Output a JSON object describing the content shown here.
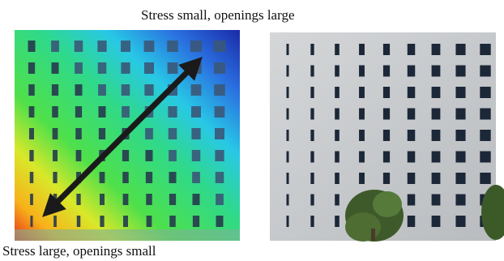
{
  "captions": {
    "top": "Stress small, openings large",
    "bottom": "Stress large, openings small"
  }
}
